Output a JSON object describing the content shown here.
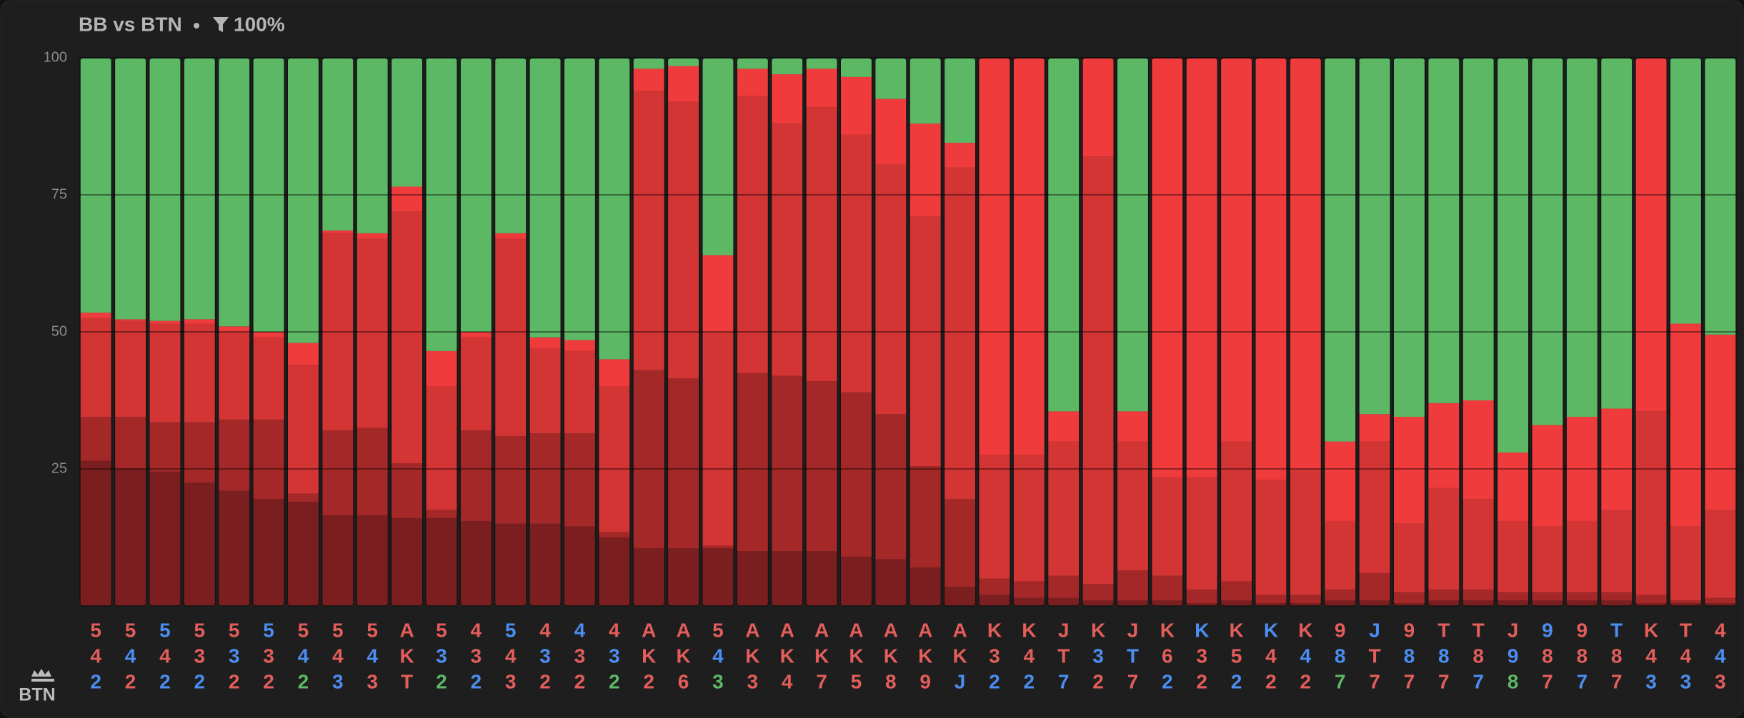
{
  "chart_data": {
    "type": "stacked-bar",
    "title": "BB vs BTN",
    "filter": "100%",
    "player": "BTN",
    "ylim": [
      0,
      100
    ],
    "yticks": [
      25,
      50,
      75,
      100
    ],
    "grid": true,
    "categories": [
      [
        "5",
        "4",
        "2"
      ],
      [
        "5",
        "4",
        "2"
      ],
      [
        "5",
        "4",
        "2"
      ],
      [
        "5",
        "3",
        "2"
      ],
      [
        "5",
        "3",
        "2"
      ],
      [
        "5",
        "3",
        "2"
      ],
      [
        "5",
        "4",
        "2"
      ],
      [
        "5",
        "4",
        "3"
      ],
      [
        "5",
        "4",
        "3"
      ],
      [
        "A",
        "K",
        "T"
      ],
      [
        "5",
        "3",
        "2"
      ],
      [
        "4",
        "3",
        "2"
      ],
      [
        "5",
        "4",
        "3"
      ],
      [
        "4",
        "3",
        "2"
      ],
      [
        "4",
        "3",
        "2"
      ],
      [
        "4",
        "3",
        "2"
      ],
      [
        "A",
        "K",
        "2"
      ],
      [
        "A",
        "K",
        "6"
      ],
      [
        "5",
        "4",
        "3"
      ],
      [
        "A",
        "K",
        "3"
      ],
      [
        "A",
        "K",
        "4"
      ],
      [
        "A",
        "K",
        "7"
      ],
      [
        "A",
        "K",
        "5"
      ],
      [
        "A",
        "K",
        "8"
      ],
      [
        "A",
        "K",
        "9"
      ],
      [
        "A",
        "K",
        "J"
      ],
      [
        "K",
        "3",
        "2"
      ],
      [
        "K",
        "4",
        "2"
      ],
      [
        "J",
        "T",
        "7"
      ],
      [
        "K",
        "3",
        "2"
      ],
      [
        "J",
        "T",
        "7"
      ],
      [
        "K",
        "6",
        "2"
      ],
      [
        "K",
        "3",
        "2"
      ],
      [
        "K",
        "5",
        "2"
      ],
      [
        "K",
        "4",
        "2"
      ],
      [
        "K",
        "4",
        "2"
      ],
      [
        "9",
        "8",
        "7"
      ],
      [
        "J",
        "T",
        "7"
      ],
      [
        "9",
        "8",
        "7"
      ],
      [
        "T",
        "8",
        "7"
      ],
      [
        "T",
        "8",
        "7"
      ],
      [
        "J",
        "9",
        "8"
      ],
      [
        "9",
        "8",
        "7"
      ],
      [
        "9",
        "8",
        "7"
      ],
      [
        "T",
        "8",
        "7"
      ],
      [
        "K",
        "4",
        "3"
      ],
      [
        "T",
        "4",
        "3"
      ],
      [
        "4",
        "4",
        "3"
      ]
    ],
    "category_colors": [
      [
        "#e35e5b",
        "#e35e5b",
        "#4b8df0"
      ],
      [
        "#e35e5b",
        "#4b8df0",
        "#e35e5b"
      ],
      [
        "#4b8df0",
        "#e35e5b",
        "#4b8df0"
      ],
      [
        "#e35e5b",
        "#e35e5b",
        "#4b8df0"
      ],
      [
        "#e35e5b",
        "#4b8df0",
        "#e35e5b"
      ],
      [
        "#4b8df0",
        "#e35e5b",
        "#e35e5b"
      ],
      [
        "#e35e5b",
        "#4b8df0",
        "#5cb865"
      ],
      [
        "#e35e5b",
        "#e35e5b",
        "#4b8df0"
      ],
      [
        "#e35e5b",
        "#4b8df0",
        "#e35e5b"
      ],
      [
        "#e35e5b",
        "#e35e5b",
        "#e35e5b"
      ],
      [
        "#e35e5b",
        "#4b8df0",
        "#5cb865"
      ],
      [
        "#e35e5b",
        "#e35e5b",
        "#4b8df0"
      ],
      [
        "#4b8df0",
        "#e35e5b",
        "#e35e5b"
      ],
      [
        "#e35e5b",
        "#4b8df0",
        "#e35e5b"
      ],
      [
        "#4b8df0",
        "#e35e5b",
        "#e35e5b"
      ],
      [
        "#e35e5b",
        "#4b8df0",
        "#5cb865"
      ],
      [
        "#e35e5b",
        "#e35e5b",
        "#e35e5b"
      ],
      [
        "#e35e5b",
        "#e35e5b",
        "#e35e5b"
      ],
      [
        "#e35e5b",
        "#4b8df0",
        "#5cb865"
      ],
      [
        "#e35e5b",
        "#e35e5b",
        "#e35e5b"
      ],
      [
        "#e35e5b",
        "#e35e5b",
        "#e35e5b"
      ],
      [
        "#e35e5b",
        "#e35e5b",
        "#e35e5b"
      ],
      [
        "#e35e5b",
        "#e35e5b",
        "#e35e5b"
      ],
      [
        "#e35e5b",
        "#e35e5b",
        "#e35e5b"
      ],
      [
        "#e35e5b",
        "#e35e5b",
        "#e35e5b"
      ],
      [
        "#e35e5b",
        "#e35e5b",
        "#4b8df0"
      ],
      [
        "#e35e5b",
        "#e35e5b",
        "#4b8df0"
      ],
      [
        "#e35e5b",
        "#e35e5b",
        "#4b8df0"
      ],
      [
        "#e35e5b",
        "#e35e5b",
        "#4b8df0"
      ],
      [
        "#e35e5b",
        "#4b8df0",
        "#e35e5b"
      ],
      [
        "#e35e5b",
        "#4b8df0",
        "#e35e5b"
      ],
      [
        "#e35e5b",
        "#e35e5b",
        "#4b8df0"
      ],
      [
        "#4b8df0",
        "#e35e5b",
        "#e35e5b"
      ],
      [
        "#e35e5b",
        "#e35e5b",
        "#4b8df0"
      ],
      [
        "#4b8df0",
        "#e35e5b",
        "#e35e5b"
      ],
      [
        "#e35e5b",
        "#4b8df0",
        "#e35e5b"
      ],
      [
        "#e35e5b",
        "#4b8df0",
        "#5cb865"
      ],
      [
        "#4b8df0",
        "#e35e5b",
        "#e35e5b"
      ],
      [
        "#e35e5b",
        "#4b8df0",
        "#e35e5b"
      ],
      [
        "#e35e5b",
        "#4b8df0",
        "#e35e5b"
      ],
      [
        "#e35e5b",
        "#e35e5b",
        "#4b8df0"
      ],
      [
        "#e35e5b",
        "#4b8df0",
        "#5cb865"
      ],
      [
        "#4b8df0",
        "#e35e5b",
        "#e35e5b"
      ],
      [
        "#e35e5b",
        "#e35e5b",
        "#4b8df0"
      ],
      [
        "#4b8df0",
        "#e35e5b",
        "#e35e5b"
      ],
      [
        "#e35e5b",
        "#e35e5b",
        "#4b8df0"
      ],
      [
        "#e35e5b",
        "#e35e5b",
        "#4b8df0"
      ],
      [
        "#e35e5b",
        "#4b8df0",
        "#e35e5b"
      ]
    ],
    "series": [
      {
        "color": "#7b1e1f",
        "values": [
          26.5,
          25,
          24.5,
          22.5,
          21,
          19.5,
          19,
          16.5,
          16.5,
          16,
          16,
          15.5,
          15,
          15,
          14.5,
          12.5,
          10.5,
          10.5,
          10.5,
          10,
          10,
          10,
          9,
          8.5,
          7,
          3.5,
          2,
          1.5,
          1.5,
          1,
          1,
          1,
          0.5,
          1,
          0.5,
          0.5,
          1,
          1,
          0.5,
          1,
          1,
          1,
          1,
          1,
          1,
          0.5,
          0.5,
          0.5
        ]
      },
      {
        "color": "#a52829",
        "values": [
          8,
          9.5,
          9,
          11,
          13,
          14.5,
          1.5,
          15.5,
          16,
          10,
          1.5,
          16.5,
          16,
          16.5,
          17,
          1,
          32.5,
          31,
          0.5,
          32.5,
          32,
          31,
          30,
          26.5,
          18.5,
          16,
          3,
          3,
          4,
          3,
          5.5,
          4.5,
          2.5,
          3.5,
          1.5,
          1.5,
          2,
          5,
          2,
          2,
          2,
          1.5,
          1.5,
          1.5,
          1.5,
          1.5,
          0.5,
          1
        ]
      },
      {
        "color": "#d33535",
        "values": [
          18,
          17.5,
          18,
          18,
          16,
          15,
          23.5,
          36,
          34.5,
          46,
          22.5,
          17,
          36,
          15.5,
          15,
          26.5,
          51,
          50.5,
          39,
          50.5,
          46,
          50,
          47,
          45.5,
          45.5,
          60.5,
          22.5,
          23,
          24.5,
          78,
          23.5,
          18,
          20.5,
          25.5,
          21,
          23,
          12.5,
          24,
          12.5,
          18.5,
          16.5,
          13,
          12,
          13,
          15,
          33.5,
          13.5,
          16
        ]
      },
      {
        "color": "#f03b3c",
        "values": [
          1,
          0.3,
          0.5,
          0.8,
          1,
          1,
          4,
          0.5,
          1,
          4.5,
          6.5,
          1,
          1,
          2,
          2,
          5,
          4,
          6.5,
          14,
          5,
          9,
          7,
          10.5,
          12,
          17,
          4.5,
          72.5,
          72.5,
          5.5,
          18,
          5.5,
          76.5,
          76.5,
          70,
          77,
          75,
          14.5,
          5,
          19.5,
          15.5,
          18,
          12.5,
          18.5,
          19,
          18.5,
          64.5,
          37,
          32
        ]
      },
      {
        "color": "#5cb865",
        "values": [
          46.5,
          47.7,
          48,
          47.7,
          49,
          50,
          52,
          31.5,
          32,
          23.5,
          53.5,
          50,
          32,
          51,
          51.5,
          55,
          2,
          1.5,
          36,
          2,
          3,
          2,
          3.5,
          7.5,
          12,
          15.5,
          0,
          0,
          64.5,
          0,
          64.5,
          0,
          0,
          0,
          0,
          0,
          70,
          65,
          65.5,
          63,
          62.5,
          72,
          67,
          65.5,
          64,
          0,
          48.5,
          50.5
        ]
      }
    ]
  }
}
